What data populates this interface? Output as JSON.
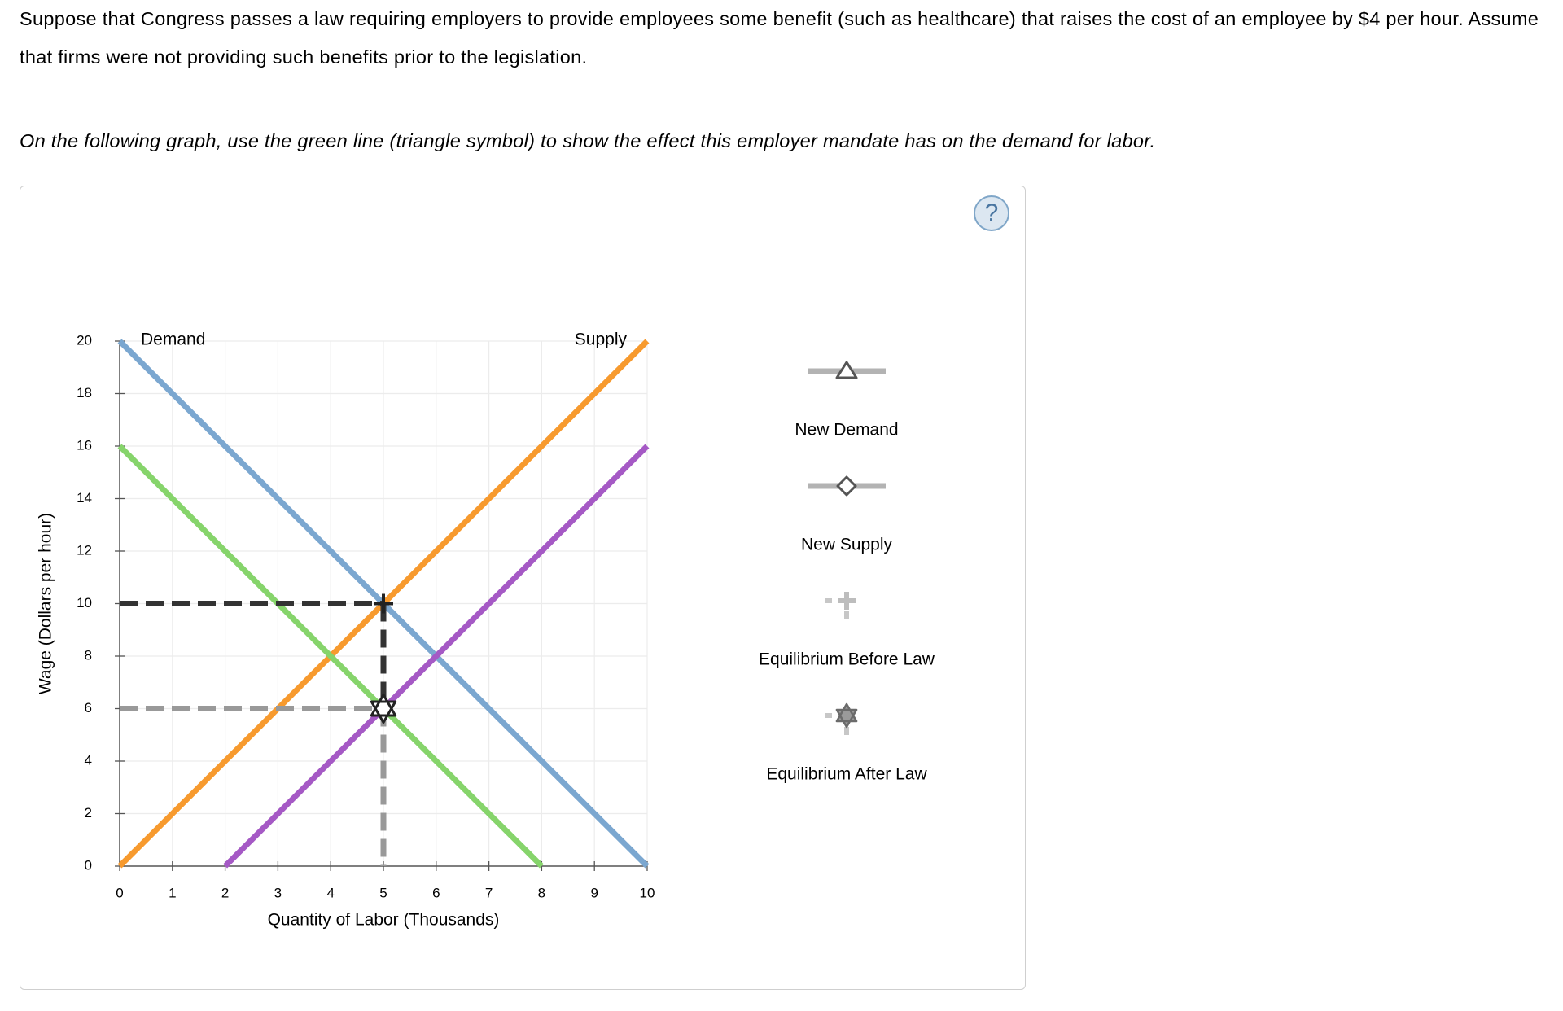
{
  "question": {
    "paragraph": "Suppose that Congress passes a law requiring employers to provide employees some benefit (such as healthcare) that raises the cost of an employee by $4 per hour. Assume that firms were not providing such benefits prior to the legislation.",
    "instruction": "On the following graph, use the green line (triangle symbol) to show the effect this employer mandate has on the demand for labor."
  },
  "panel": {
    "help_symbol": "?"
  },
  "chart_data": {
    "type": "line",
    "xlabel": "Quantity of Labor (Thousands)",
    "ylabel": "Wage (Dollars per hour)",
    "xlim": [
      0,
      10
    ],
    "ylim": [
      0,
      20
    ],
    "x_ticks": [
      0,
      1,
      2,
      3,
      4,
      5,
      6,
      7,
      8,
      9,
      10
    ],
    "y_ticks": [
      0,
      2,
      4,
      6,
      8,
      10,
      12,
      14,
      16,
      18,
      20
    ],
    "grid": true,
    "series": [
      {
        "name": "Demand",
        "color": "#7ba7d0",
        "points": [
          [
            0,
            20
          ],
          [
            10,
            0
          ]
        ],
        "label": "Demand"
      },
      {
        "name": "Supply",
        "color": "#f79a2e",
        "points": [
          [
            0,
            0
          ],
          [
            10,
            20
          ]
        ],
        "label": "Supply"
      },
      {
        "name": "New Demand",
        "color": "#86d46b",
        "points": [
          [
            0,
            16
          ],
          [
            8,
            0
          ]
        ]
      },
      {
        "name": "New Supply",
        "color": "#a559c5",
        "points": [
          [
            2,
            0
          ],
          [
            10,
            16
          ]
        ]
      }
    ],
    "guides": [
      {
        "name": "Equilibrium Before Law",
        "color": "#333333",
        "x": 5,
        "y": 10
      },
      {
        "name": "Equilibrium After Law",
        "color": "#999999",
        "x": 5,
        "y": 6
      }
    ],
    "markers": [
      {
        "name": "Equilibrium Before Law",
        "symbol": "plus",
        "x": 5,
        "y": 10
      },
      {
        "name": "Equilibrium After Law",
        "symbol": "star",
        "x": 5,
        "y": 6
      }
    ],
    "legend": {
      "position": "right",
      "items": [
        {
          "label": "New Demand",
          "symbol": "triangle"
        },
        {
          "label": "New Supply",
          "symbol": "diamond"
        },
        {
          "label": "Equilibrium Before Law",
          "symbol": "plus"
        },
        {
          "label": "Equilibrium After Law",
          "symbol": "star"
        }
      ]
    }
  }
}
